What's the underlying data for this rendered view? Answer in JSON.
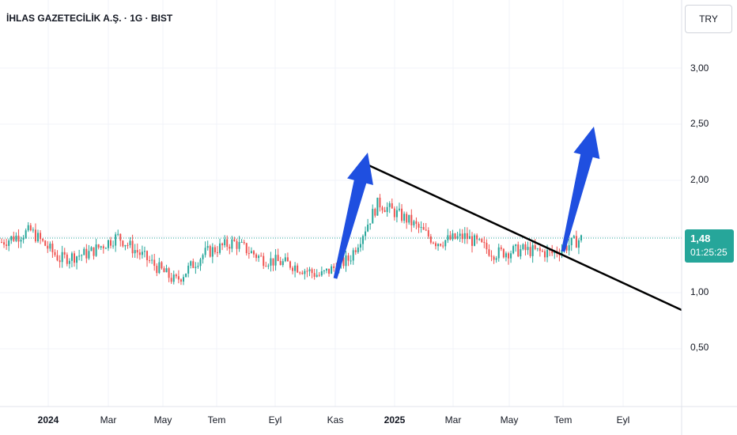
{
  "header": {
    "title": "İHLAS GAZETECİLİK A.Ş. · 1G · BIST"
  },
  "currency": "TRY",
  "last_price": {
    "value": "1,48",
    "countdown": "01:25:25",
    "color": "#26a69a"
  },
  "colors": {
    "up": "#26a69a",
    "down": "#ef5350",
    "arrow": "#1f4fe0",
    "trendline": "#000000"
  },
  "chart_data": {
    "type": "candlestick",
    "title": "İHLAS GAZETECİLİK A.Ş. · 1G · BIST",
    "y_ticks": [
      "3,00",
      "2,50",
      "2,00",
      "1,00",
      "0,50"
    ],
    "x_ticks": [
      "2024",
      "Mar",
      "May",
      "Tem",
      "Eyl",
      "Kas",
      "2025",
      "Mar",
      "May",
      "Tem",
      "Eyl"
    ],
    "ylim": [
      0.05,
      3.35
    ],
    "grid": true,
    "series": [
      {
        "x": [
          "2023-11",
          "2023-12",
          "2024-01",
          "2024-02",
          "2024-03",
          "2024-04",
          "2024-05",
          "2024-06",
          "2024-07",
          "2024-08",
          "2024-09",
          "2024-10",
          "2024-11",
          "2024-12",
          "2025-01",
          "2025-02",
          "2025-03",
          "2025-04",
          "2025-05",
          "2025-06",
          "2025-07"
        ],
        "close": [
          1.45,
          1.55,
          1.3,
          1.35,
          1.5,
          1.3,
          1.1,
          1.35,
          1.45,
          1.3,
          1.25,
          1.15,
          1.3,
          1.8,
          1.65,
          1.45,
          1.5,
          1.35,
          1.38,
          1.35,
          1.48
        ]
      }
    ],
    "annotations": {
      "trendline": {
        "from": [
          "2024-12",
          2.25
        ],
        "to": [
          "2025-09",
          0.8
        ]
      },
      "arrows": [
        {
          "from": [
            "2024-11",
            1.15
          ],
          "to": [
            "2024-12",
            2.25
          ]
        },
        {
          "from": [
            "2025-07",
            1.35
          ],
          "to": [
            "2025-08",
            2.5
          ]
        }
      ]
    }
  }
}
